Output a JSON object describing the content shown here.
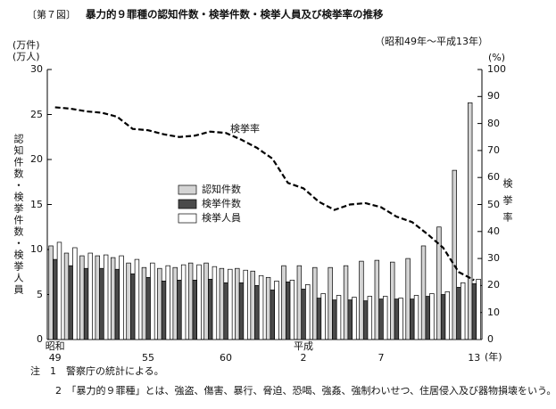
{
  "chart_data": {
    "type": "bar",
    "figure_label": "〔第７図〕",
    "title": "暴力的９罪種の認知件数・検挙件数・検挙人員及び検挙率の推移",
    "subtitle": "（昭和49年～平成13年）",
    "y_unit": "(万件)\n(万人)",
    "y_label": "認知件数・検挙件数・検挙人員",
    "y2_unit": "(%)",
    "y2_label": "検挙率",
    "x_unit": "(年)",
    "categories": [
      "昭和\n49",
      null,
      null,
      null,
      null,
      null,
      "55",
      null,
      null,
      null,
      null,
      "60",
      null,
      null,
      null,
      null,
      "平成\n2",
      null,
      null,
      null,
      null,
      "7",
      null,
      null,
      null,
      null,
      null,
      "13"
    ],
    "ylim": [
      0,
      30
    ],
    "yticks": [
      0,
      5,
      10,
      15,
      20,
      25,
      30
    ],
    "y2lim": [
      0,
      100
    ],
    "y2ticks": [
      0,
      10,
      20,
      30,
      40,
      50,
      60,
      70,
      80,
      90,
      100
    ],
    "legend": "center",
    "series": [
      {
        "name": "認知件数",
        "color": "#d4d4d4",
        "values": [
          10.4,
          9.6,
          9.3,
          9.3,
          9.1,
          8.5,
          8.0,
          7.9,
          8.0,
          8.5,
          8.5,
          7.9,
          7.9,
          7.6,
          6.9,
          8.2,
          8.2,
          8.0,
          8.0,
          8.2,
          8.7,
          8.8,
          8.6,
          9.0,
          10.4,
          12.5,
          18.8,
          26.3
        ]
      },
      {
        "name": "検挙件数",
        "color": "#4a4a4a",
        "values": [
          8.9,
          8.2,
          7.9,
          7.9,
          7.8,
          7.3,
          6.9,
          6.5,
          6.6,
          6.6,
          6.7,
          6.3,
          6.3,
          6.0,
          5.5,
          6.4,
          5.6,
          4.6,
          4.4,
          4.4,
          4.3,
          4.5,
          4.5,
          4.5,
          4.8,
          5.0,
          5.8,
          6.2
        ]
      },
      {
        "name": "検挙人員",
        "color": "#ffffff",
        "values": [
          10.8,
          10.2,
          9.6,
          9.4,
          9.3,
          8.9,
          8.5,
          8.2,
          8.3,
          8.3,
          8.1,
          7.8,
          7.7,
          7.1,
          6.5,
          6.6,
          6.1,
          5.1,
          4.9,
          4.7,
          4.8,
          4.8,
          4.6,
          4.9,
          5.1,
          5.3,
          6.3,
          6.7
        ]
      },
      {
        "name": "検挙率",
        "type": "line",
        "axis": "y2",
        "color": "#000000",
        "values": [
          86,
          85.5,
          84.5,
          84,
          82.5,
          78,
          77.5,
          76,
          75,
          75.5,
          77,
          76.5,
          74,
          71,
          67,
          58,
          56,
          51,
          48,
          50,
          50.5,
          49,
          45.5,
          43.5,
          39,
          34,
          25,
          22
        ]
      }
    ],
    "notes": [
      "注　1　警察庁の統計による。",
      "2　「暴力的９罪種」とは、強盗、傷害、暴行、脅迫、恐喝、強姦、強制わいせつ、住居侵入及び器物損壊をいう。"
    ]
  }
}
